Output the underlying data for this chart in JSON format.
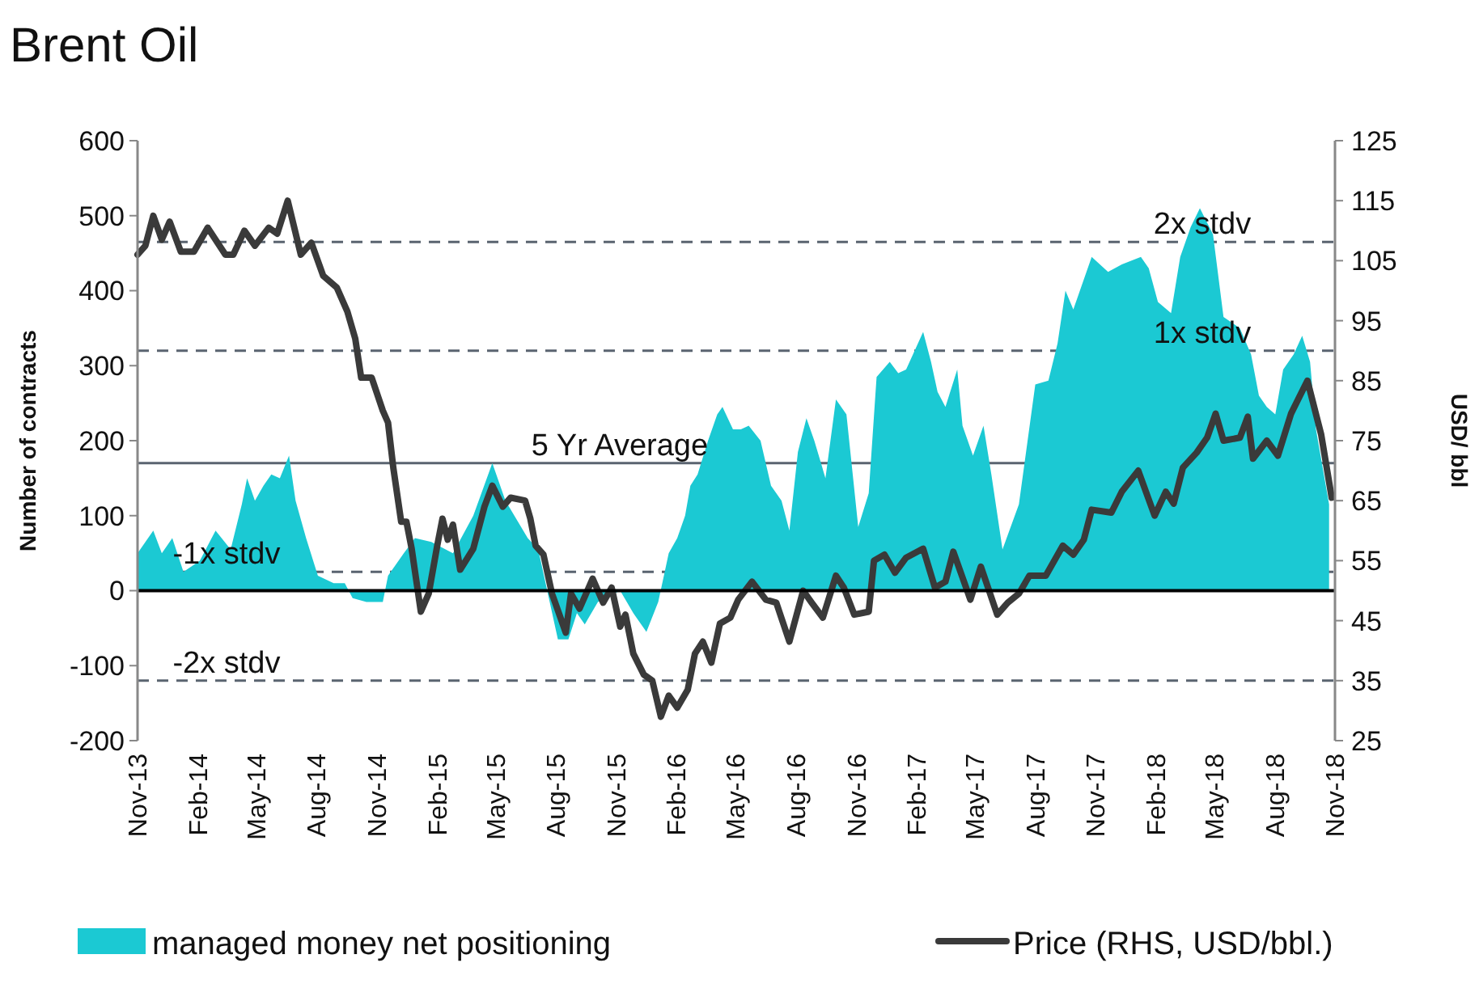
{
  "chart_data": {
    "type": "line",
    "title": "Brent Oil",
    "ylabel": "Number of contracts",
    "y2label": "USD/ bbl",
    "xlim": [
      "2013-11-01",
      "2018-11-01"
    ],
    "xticks": [
      {
        "value": "2013-11-01",
        "label": "Nov-13"
      },
      {
        "value": "2014-02-01",
        "label": "Feb-14"
      },
      {
        "value": "2014-05-01",
        "label": "May-14"
      },
      {
        "value": "2014-08-01",
        "label": "Aug-14"
      },
      {
        "value": "2014-11-01",
        "label": "Nov-14"
      },
      {
        "value": "2015-02-01",
        "label": "Feb-15"
      },
      {
        "value": "2015-05-01",
        "label": "May-15"
      },
      {
        "value": "2015-08-01",
        "label": "Aug-15"
      },
      {
        "value": "2015-11-01",
        "label": "Nov-15"
      },
      {
        "value": "2016-02-01",
        "label": "Feb-16"
      },
      {
        "value": "2016-05-01",
        "label": "May-16"
      },
      {
        "value": "2016-08-01",
        "label": "Aug-16"
      },
      {
        "value": "2016-11-01",
        "label": "Nov-16"
      },
      {
        "value": "2017-02-01",
        "label": "Feb-17"
      },
      {
        "value": "2017-05-01",
        "label": "May-17"
      },
      {
        "value": "2017-08-01",
        "label": "Aug-17"
      },
      {
        "value": "2017-11-01",
        "label": "Nov-17"
      },
      {
        "value": "2018-02-01",
        "label": "Feb-18"
      },
      {
        "value": "2018-05-01",
        "label": "May-18"
      },
      {
        "value": "2018-08-01",
        "label": "Aug-18"
      },
      {
        "value": "2018-11-01",
        "label": "Nov-18"
      }
    ],
    "ylim": [
      -200,
      600
    ],
    "yticks": [
      -200,
      -100,
      0,
      100,
      200,
      300,
      400,
      500,
      600
    ],
    "y2lim": [
      25,
      125
    ],
    "y2ticks": [
      25,
      35,
      45,
      55,
      65,
      75,
      85,
      95,
      105,
      115,
      125
    ],
    "grid": false,
    "legend": "bottom",
    "ref_lines": [
      {
        "axis": "y",
        "value": 465,
        "label": "2x stdv",
        "line_style": "dashed",
        "color": "#5a6470"
      },
      {
        "axis": "y",
        "value": 320,
        "label": "1x stdv",
        "line_style": "dashed",
        "color": "#5a6470"
      },
      {
        "axis": "y",
        "value": 170,
        "label": "5 Yr Average",
        "line_style": "solid",
        "color": "#5a6470"
      },
      {
        "axis": "y",
        "value": 25,
        "label": "-1x stdv",
        "line_style": "dashed",
        "color": "#5a6470"
      },
      {
        "axis": "y",
        "value": -120,
        "label": "-2x stdv",
        "line_style": "dashed",
        "color": "#5a6470"
      }
    ],
    "series": [
      {
        "name": "managed money net positioning",
        "type": "area",
        "color": "#1bc9d3",
        "x": [
          "2013-11-01",
          "2013-11-13",
          "2013-11-25",
          "2013-12-08",
          "2013-12-24",
          "2014-01-10",
          "2014-02-04",
          "2014-02-28",
          "2014-03-23",
          "2014-04-09",
          "2014-04-17",
          "2014-04-29",
          "2014-05-12",
          "2014-05-24",
          "2014-06-06",
          "2014-06-20",
          "2014-06-30",
          "2014-07-16",
          "2014-08-03",
          "2014-08-27",
          "2014-09-13",
          "2014-09-25",
          "2014-10-16",
          "2014-11-10",
          "2014-11-18",
          "2014-12-12",
          "2014-12-29",
          "2015-01-23",
          "2015-02-25",
          "2015-03-28",
          "2015-04-26",
          "2015-05-16",
          "2015-06-19",
          "2015-07-05",
          "2015-08-04",
          "2015-08-20",
          "2015-09-02",
          "2015-09-14",
          "2015-10-04",
          "2015-11-07",
          "2015-11-27",
          "2015-12-17",
          "2016-01-04",
          "2016-01-20",
          "2016-02-02",
          "2016-02-14",
          "2016-02-22",
          "2016-03-04",
          "2016-03-20",
          "2016-04-03",
          "2016-04-11",
          "2016-04-27",
          "2016-05-09",
          "2016-05-21",
          "2016-06-08",
          "2016-06-24",
          "2016-07-10",
          "2016-07-22",
          "2016-08-04",
          "2016-08-17",
          "2016-08-29",
          "2016-09-15",
          "2016-10-01",
          "2016-10-17",
          "2016-11-04",
          "2016-11-20",
          "2016-12-02",
          "2016-12-22",
          "2017-01-04",
          "2017-01-16",
          "2017-02-11",
          "2017-02-23",
          "2017-03-05",
          "2017-03-17",
          "2017-04-04",
          "2017-04-12",
          "2017-04-28",
          "2017-05-14",
          "2017-05-26",
          "2017-06-12",
          "2017-07-07",
          "2017-08-01",
          "2017-08-21",
          "2017-09-04",
          "2017-09-16",
          "2017-09-28",
          "2017-10-26",
          "2017-11-20",
          "2017-12-11",
          "2018-01-09",
          "2018-01-21",
          "2018-02-04",
          "2018-02-24",
          "2018-03-10",
          "2018-03-26",
          "2018-04-09",
          "2018-04-29",
          "2018-05-15",
          "2018-06-09",
          "2018-06-26",
          "2018-07-08",
          "2018-07-20",
          "2018-08-02",
          "2018-08-14",
          "2018-08-30",
          "2018-09-12",
          "2018-09-24",
          "2018-10-03",
          "2018-10-23"
        ],
        "values": [
          50,
          65,
          80,
          50,
          70,
          25,
          40,
          80,
          55,
          115,
          150,
          120,
          140,
          155,
          150,
          180,
          120,
          70,
          20,
          10,
          10,
          -10,
          -15,
          -15,
          20,
          50,
          70,
          65,
          50,
          100,
          170,
          120,
          70,
          55,
          -65,
          -65,
          -30,
          -45,
          -15,
          0,
          -30,
          -55,
          -15,
          50,
          70,
          100,
          140,
          155,
          200,
          235,
          245,
          215,
          215,
          220,
          200,
          140,
          120,
          80,
          185,
          230,
          200,
          150,
          255,
          235,
          85,
          130,
          285,
          305,
          290,
          295,
          345,
          305,
          265,
          245,
          295,
          220,
          180,
          220,
          155,
          55,
          115,
          275,
          280,
          330,
          400,
          375,
          445,
          425,
          435,
          445,
          430,
          385,
          370,
          445,
          485,
          510,
          475,
          365,
          350,
          315,
          260,
          245,
          235,
          295,
          315,
          340,
          305,
          215,
          115
        ]
      },
      {
        "name": "Price (RHS, USD/bbl.)",
        "axis": "y2",
        "color": "#3a3a3a",
        "line_style": "solid",
        "x": [
          "2013-11-01",
          "2013-11-13",
          "2013-11-25",
          "2013-12-08",
          "2013-12-20",
          "2014-01-06",
          "2014-01-26",
          "2014-02-16",
          "2014-03-15",
          "2014-03-27",
          "2014-04-13",
          "2014-04-29",
          "2014-05-20",
          "2014-06-02",
          "2014-06-18",
          "2014-07-08",
          "2014-07-24",
          "2014-08-11",
          "2014-09-01",
          "2014-09-17",
          "2014-09-29",
          "2014-10-08",
          "2014-10-24",
          "2014-11-10",
          "2014-11-18",
          "2014-11-26",
          "2014-12-08",
          "2014-12-16",
          "2014-12-24",
          "2015-01-07",
          "2015-01-19",
          "2015-02-01",
          "2015-02-09",
          "2015-02-17",
          "2015-02-25",
          "2015-03-08",
          "2015-03-28",
          "2015-04-14",
          "2015-04-26",
          "2015-05-12",
          "2015-05-24",
          "2015-06-15",
          "2015-06-23",
          "2015-07-01",
          "2015-07-13",
          "2015-07-26",
          "2015-08-16",
          "2015-08-24",
          "2015-09-06",
          "2015-09-26",
          "2015-10-12",
          "2015-10-25",
          "2015-11-07",
          "2015-11-15",
          "2015-11-27",
          "2015-12-13",
          "2015-12-26",
          "2016-01-08",
          "2016-01-20",
          "2016-02-02",
          "2016-02-18",
          "2016-02-29",
          "2016-03-12",
          "2016-03-25",
          "2016-04-07",
          "2016-04-23",
          "2016-05-05",
          "2016-05-26",
          "2016-06-16",
          "2016-07-02",
          "2016-07-22",
          "2016-08-12",
          "2016-08-25",
          "2016-09-11",
          "2016-10-01",
          "2016-10-13",
          "2016-10-29",
          "2016-11-20",
          "2016-11-28",
          "2016-12-14",
          "2016-12-30",
          "2017-01-16",
          "2017-02-11",
          "2017-03-01",
          "2017-03-17",
          "2017-03-29",
          "2017-04-24",
          "2017-05-10",
          "2017-06-04",
          "2017-06-20",
          "2017-07-07",
          "2017-07-23",
          "2017-08-17",
          "2017-09-12",
          "2017-09-28",
          "2017-10-14",
          "2017-10-26",
          "2017-11-25",
          "2017-12-11",
          "2018-01-05",
          "2018-01-30",
          "2018-02-16",
          "2018-02-28",
          "2018-03-14",
          "2018-04-04",
          "2018-04-20",
          "2018-05-03",
          "2018-05-15",
          "2018-06-09",
          "2018-06-21",
          "2018-06-29",
          "2018-07-20",
          "2018-08-06",
          "2018-08-26",
          "2018-09-20",
          "2018-10-11",
          "2018-10-27"
        ],
        "values": [
          106,
          107.5,
          112.5,
          108.5,
          111.5,
          106.5,
          106.5,
          110.5,
          106,
          106,
          110,
          107.5,
          110.5,
          109.5,
          115,
          106,
          108,
          102.5,
          100.5,
          96.5,
          92,
          85.5,
          85.5,
          80,
          78,
          70.5,
          61.5,
          61.5,
          57,
          46.5,
          49.5,
          57.5,
          62,
          58.5,
          61,
          53.5,
          57,
          64,
          67.5,
          64,
          65.5,
          65,
          62,
          57.5,
          56,
          49.5,
          43,
          49.5,
          47,
          52,
          48,
          50.5,
          44,
          46,
          39.5,
          36,
          35,
          29,
          32.5,
          30.5,
          33.5,
          39.5,
          41.5,
          38,
          44.5,
          45.5,
          48.5,
          51.5,
          48.5,
          48,
          41.5,
          50,
          48,
          45.5,
          52.5,
          50.5,
          46,
          46.5,
          55,
          56,
          53,
          55.5,
          57,
          50.5,
          51.5,
          56.5,
          48.5,
          54,
          46,
          48,
          49.5,
          52.5,
          52.5,
          57.5,
          56,
          58.5,
          63.5,
          63,
          66.5,
          70,
          62.5,
          66.5,
          64.5,
          70.5,
          73,
          75.5,
          79.5,
          75,
          75.5,
          79,
          72,
          75,
          72.5,
          79.5,
          85,
          76,
          65.5
        ]
      }
    ]
  }
}
